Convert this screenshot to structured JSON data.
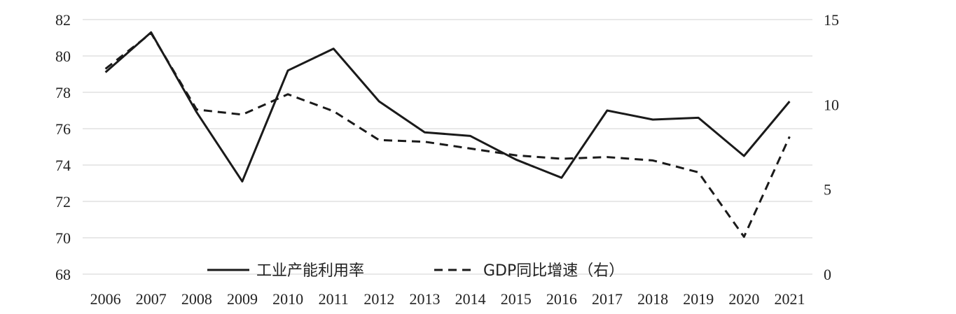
{
  "chart_data": {
    "type": "line",
    "title": "",
    "xlabel": "",
    "ylabel": "",
    "x": [
      "2006",
      "2007",
      "2008",
      "2009",
      "2010",
      "2011",
      "2012",
      "2013",
      "2014",
      "2015",
      "2016",
      "2017",
      "2018",
      "2019",
      "2020",
      "2021"
    ],
    "y_left": {
      "min": 68,
      "max": 82,
      "ticks": [
        "82",
        "80",
        "78",
        "76",
        "74",
        "72",
        "70",
        "68"
      ]
    },
    "y_right": {
      "min": 0,
      "max": 15,
      "ticks": [
        "15",
        "10",
        "5",
        "0"
      ]
    },
    "grid": true,
    "legend": "bottom",
    "series": [
      {
        "name": "工业产能利用率",
        "axis": "left",
        "style": "solid",
        "color": "#1a1a1a",
        "values": [
          79.1,
          81.3,
          76.9,
          73.1,
          79.2,
          80.4,
          77.5,
          75.8,
          75.6,
          74.3,
          73.3,
          77.0,
          76.5,
          76.6,
          74.5,
          77.5
        ]
      },
      {
        "name": "GDP同比增速（右）",
        "axis": "right",
        "style": "dashed",
        "color": "#1a1a1a",
        "values": [
          12.1,
          14.2,
          9.7,
          9.4,
          10.6,
          9.6,
          7.9,
          7.8,
          7.4,
          7.0,
          6.8,
          6.9,
          6.7,
          6.0,
          2.2,
          8.1
        ]
      }
    ]
  }
}
